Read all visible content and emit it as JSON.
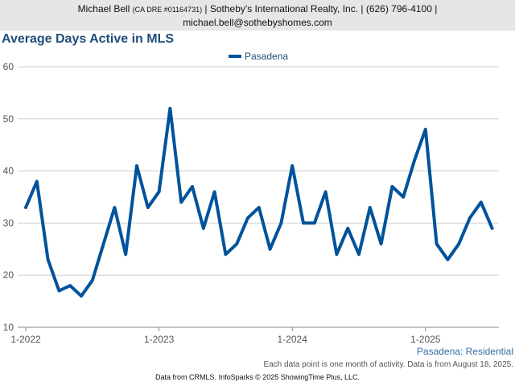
{
  "header": {
    "agent_name": "Michael Bell",
    "license": "(CA DRE #01164731)",
    "company": "| Sotheby's International Realty, Inc. | (626) 796-4100 |",
    "email": "michael.bell@sothebyshomes.com"
  },
  "chart_data": {
    "type": "line",
    "title": "Average Days Active in MLS",
    "xlabel": "",
    "ylabel": "",
    "ylim": [
      10,
      60
    ],
    "yticks": [
      10,
      20,
      30,
      40,
      50,
      60
    ],
    "x_tick_labels": [
      {
        "label": "1-2022",
        "index": 0
      },
      {
        "label": "1-2023",
        "index": 12
      },
      {
        "label": "1-2024",
        "index": 24
      },
      {
        "label": "1-2025",
        "index": 36
      }
    ],
    "legend_position": "top-center",
    "grid": true,
    "series": [
      {
        "name": "Pasadena",
        "color": "#00539b",
        "x": [
          "2022-01",
          "2022-02",
          "2022-03",
          "2022-04",
          "2022-05",
          "2022-06",
          "2022-07",
          "2022-08",
          "2022-09",
          "2022-10",
          "2022-11",
          "2022-12",
          "2023-01",
          "2023-02",
          "2023-03",
          "2023-04",
          "2023-05",
          "2023-06",
          "2023-07",
          "2023-08",
          "2023-09",
          "2023-10",
          "2023-11",
          "2023-12",
          "2024-01",
          "2024-02",
          "2024-03",
          "2024-04",
          "2024-05",
          "2024-06",
          "2024-07",
          "2024-08",
          "2024-09",
          "2024-10",
          "2024-11",
          "2024-12",
          "2025-01",
          "2025-02",
          "2025-03",
          "2025-04",
          "2025-05",
          "2025-06",
          "2025-07"
        ],
        "values": [
          33,
          38,
          23,
          17,
          18,
          16,
          19,
          26,
          33,
          24,
          41,
          33,
          36,
          52,
          34,
          37,
          29,
          36,
          24,
          26,
          31,
          33,
          25,
          30,
          41,
          30,
          30,
          36,
          24,
          29,
          24,
          33,
          26,
          37,
          35,
          42,
          48,
          26,
          23,
          26,
          31,
          34,
          29
        ]
      }
    ]
  },
  "footer": {
    "series_caption": "Pasadena: Residential",
    "note": "Each data point is one month of activity. Data is from August 18, 2025.",
    "credit": "Data from CRMLS. InfoSparks © 2025 ShowingTime Plus, LLC."
  }
}
